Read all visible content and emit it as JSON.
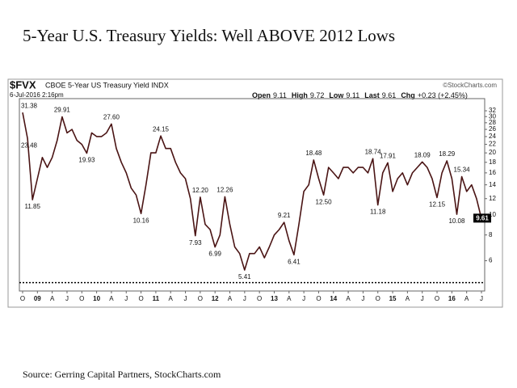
{
  "chart_data": {
    "type": "line",
    "title": "5-Year U.S. Treasury Yields: Well ABOVE 2012 Lows",
    "symbol": "$FVX",
    "subtitle": "CBOE 5-Year US Treasury Yield INDX",
    "credit": "©StockCharts.com",
    "timestamp": "6-Jul-2016 2:16pm",
    "stats": [
      {
        "label": "Open",
        "value": "9.11"
      },
      {
        "label": "High",
        "value": "9.72"
      },
      {
        "label": "Low",
        "value": "9.11"
      },
      {
        "label": "Last",
        "value": "9.61"
      },
      {
        "label": "Chg",
        "value": "+0.23 (+2.45%)"
      }
    ],
    "source": "Source: Gerring Capital Partners, StockCharts.com",
    "categories": [
      "O",
      null,
      null,
      "09",
      null,
      null,
      "A",
      null,
      null,
      "J",
      null,
      null,
      "O",
      null,
      null,
      "10",
      null,
      null,
      "A",
      null,
      null,
      "J",
      null,
      null,
      "O",
      null,
      null,
      "11",
      null,
      null,
      "A",
      null,
      null,
      "J",
      null,
      null,
      "O",
      null,
      null,
      "12",
      null,
      null,
      "A",
      null,
      null,
      "J",
      null,
      null,
      "O",
      null,
      null,
      "13",
      null,
      null,
      "A",
      null,
      null,
      "J",
      null,
      null,
      "O",
      null,
      null,
      "14",
      null,
      null,
      "A",
      null,
      null,
      "J",
      null,
      null,
      "O",
      null,
      null,
      "15",
      null,
      null,
      "A",
      null,
      null,
      "J",
      null,
      null,
      "O",
      null,
      null,
      "16",
      null,
      null,
      "A",
      null,
      null,
      "J"
    ],
    "values": [
      31.38,
      23.48,
      11.85,
      15,
      19,
      17,
      19,
      23,
      29.91,
      25,
      26,
      23,
      22,
      19.93,
      25,
      24,
      24,
      25,
      27.6,
      21,
      18,
      16,
      13.5,
      12.5,
      10.16,
      14,
      20,
      20,
      24.15,
      21,
      21,
      18,
      16,
      15,
      12,
      7.93,
      12.2,
      9,
      8.5,
      6.99,
      8,
      12.26,
      9,
      7,
      6.5,
      5.41,
      6.5,
      6.5,
      7,
      6.2,
      7,
      8,
      8.5,
      9.21,
      7.5,
      6.41,
      9,
      13,
      14,
      18.48,
      15,
      12.5,
      17,
      16,
      15,
      17,
      17,
      16,
      17,
      17,
      16,
      18.74,
      11.18,
      16,
      17.91,
      13,
      15,
      16,
      14,
      16,
      17,
      18.09,
      17,
      15,
      12.15,
      16,
      18.29,
      15,
      10.08,
      15.34,
      13,
      14,
      12,
      9.61
    ],
    "value_labels": [
      "31.38",
      "23.48",
      "11.85",
      null,
      null,
      null,
      null,
      null,
      "29.91",
      null,
      null,
      null,
      null,
      "19.93",
      null,
      null,
      null,
      null,
      "27.60",
      null,
      null,
      null,
      null,
      null,
      "10.16",
      null,
      null,
      null,
      "24.15",
      null,
      null,
      null,
      null,
      null,
      null,
      "7.93",
      "12.20",
      null,
      null,
      "6.99",
      null,
      "12.26",
      null,
      null,
      null,
      "5.41",
      null,
      null,
      null,
      null,
      null,
      null,
      null,
      "9.21",
      null,
      "6.41",
      null,
      null,
      null,
      "18.48",
      null,
      "12.50",
      null,
      null,
      null,
      null,
      null,
      null,
      null,
      null,
      null,
      "18.74",
      "11.18",
      null,
      "17.91",
      null,
      null,
      null,
      null,
      null,
      null,
      "18.09",
      null,
      null,
      "12.15",
      null,
      "18.29",
      null,
      "10.08",
      "15.34",
      null,
      null,
      null,
      "9.61"
    ],
    "color": "#4a1414",
    "log_scale": true,
    "ylim": [
      4.6,
      36
    ],
    "yticks": [
      6,
      8,
      10,
      12,
      14,
      16,
      18,
      20,
      22,
      24,
      26,
      28,
      30,
      32
    ],
    "hline": 4.7,
    "y_axis_side": "right"
  }
}
